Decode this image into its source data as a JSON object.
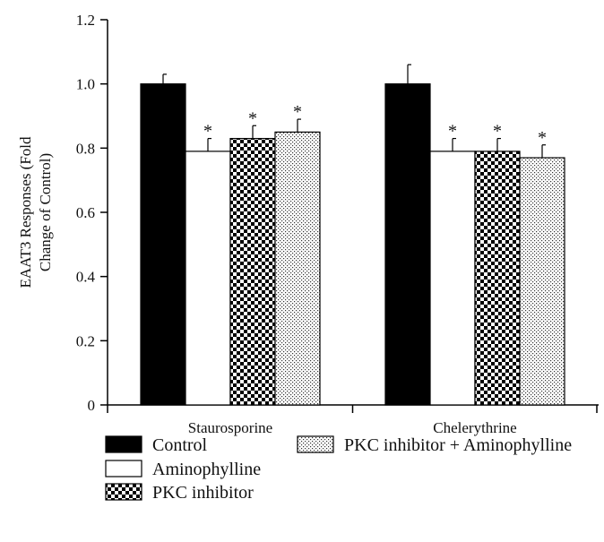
{
  "chart_data": {
    "type": "bar",
    "title": "",
    "xlabel": "",
    "ylabel_lines": [
      "EAAT3 Responses (Fold",
      "Change of Control)"
    ],
    "ylim": [
      0,
      1.2
    ],
    "yticks": [
      "0",
      "0.2",
      "0.4",
      "0.6",
      "0.8",
      "1.0",
      "1.2"
    ],
    "grid": false,
    "legend_position": "bottom",
    "categories": [
      "Staurosporine",
      "Chelerythrine"
    ],
    "series": [
      {
        "name": "Control",
        "pattern": "solid",
        "values": [
          1.0,
          1.0
        ],
        "errors": [
          0.03,
          0.06
        ],
        "significant": [
          false,
          false
        ]
      },
      {
        "name": "Aminophylline",
        "pattern": "white",
        "values": [
          0.79,
          0.79
        ],
        "errors": [
          0.04,
          0.04
        ],
        "significant": [
          true,
          true
        ]
      },
      {
        "name": "PKC inhibitor",
        "pattern": "checker",
        "values": [
          0.83,
          0.79
        ],
        "errors": [
          0.04,
          0.04
        ],
        "significant": [
          true,
          true
        ]
      },
      {
        "name": "PKC inhibitor + Aminophylline",
        "pattern": "dots",
        "values": [
          0.85,
          0.77
        ],
        "errors": [
          0.04,
          0.04
        ],
        "significant": [
          true,
          true
        ]
      }
    ],
    "significance_marker": "*"
  }
}
